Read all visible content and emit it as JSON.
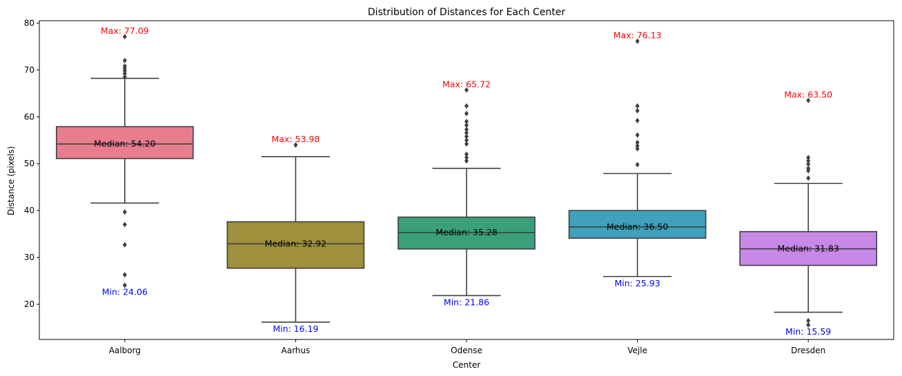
{
  "chart_data": {
    "type": "box",
    "title": "Distribution of Distances for Each Center",
    "xlabel": "Center",
    "ylabel": "Distance (pixels)",
    "ylim": [
      12.5,
      80.5
    ],
    "yticks": [
      20,
      30,
      40,
      50,
      60,
      70,
      80
    ],
    "grid": false,
    "categories": [
      "Aalborg",
      "Aarhus",
      "Odense",
      "Vejle",
      "Dresden"
    ],
    "colors": [
      "#e87d8e",
      "#9e903c",
      "#3aa07a",
      "#3fa1bb",
      "#c788e8"
    ],
    "boxes": [
      {
        "q1": 51.1,
        "median": 54.2,
        "q3": 57.9,
        "whisker_low": 41.6,
        "whisker_high": 68.2,
        "outliers": [
          77.09,
          72.0,
          70.8,
          70.3,
          69.8,
          69.2,
          68.5,
          39.7,
          37.0,
          32.7,
          26.3,
          24.06
        ]
      },
      {
        "q1": 27.7,
        "median": 32.92,
        "q3": 37.6,
        "whisker_low": 16.19,
        "whisker_high": 51.5,
        "outliers": [
          53.98
        ]
      },
      {
        "q1": 31.8,
        "median": 35.28,
        "q3": 38.6,
        "whisker_low": 21.86,
        "whisker_high": 49.0,
        "outliers": [
          65.72,
          62.3,
          60.7,
          59.0,
          58.2,
          57.3,
          56.6,
          55.8,
          55.0,
          54.2,
          52.0,
          51.3,
          50.6
        ]
      },
      {
        "q1": 34.1,
        "median": 36.5,
        "q3": 40.0,
        "whisker_low": 25.93,
        "whisker_high": 47.9,
        "outliers": [
          76.13,
          62.3,
          61.3,
          59.2,
          56.1,
          54.5,
          53.8,
          53.2,
          49.8
        ]
      },
      {
        "q1": 28.3,
        "median": 31.83,
        "q3": 35.5,
        "whisker_low": 18.3,
        "whisker_high": 45.8,
        "outliers": [
          63.5,
          51.3,
          50.6,
          49.9,
          49.0,
          48.5,
          46.9,
          16.5,
          15.59
        ]
      }
    ],
    "annotations": {
      "max": [
        "Max: 77.09",
        "Max: 53.98",
        "Max: 65.72",
        "Max: 76.13",
        "Max: 63.50"
      ],
      "median": [
        "Median: 54.20",
        "Median: 32.92",
        "Median: 35.28",
        "Median: 36.50",
        "Median: 31.83"
      ],
      "min": [
        "Min: 24.06",
        "Min: 16.19",
        "Min: 21.86",
        "Min: 25.93",
        "Min: 15.59"
      ],
      "max_color": "#ff0000",
      "min_color": "#0000ff",
      "median_color": "#000000"
    },
    "line_color": "#3f3f3f"
  }
}
